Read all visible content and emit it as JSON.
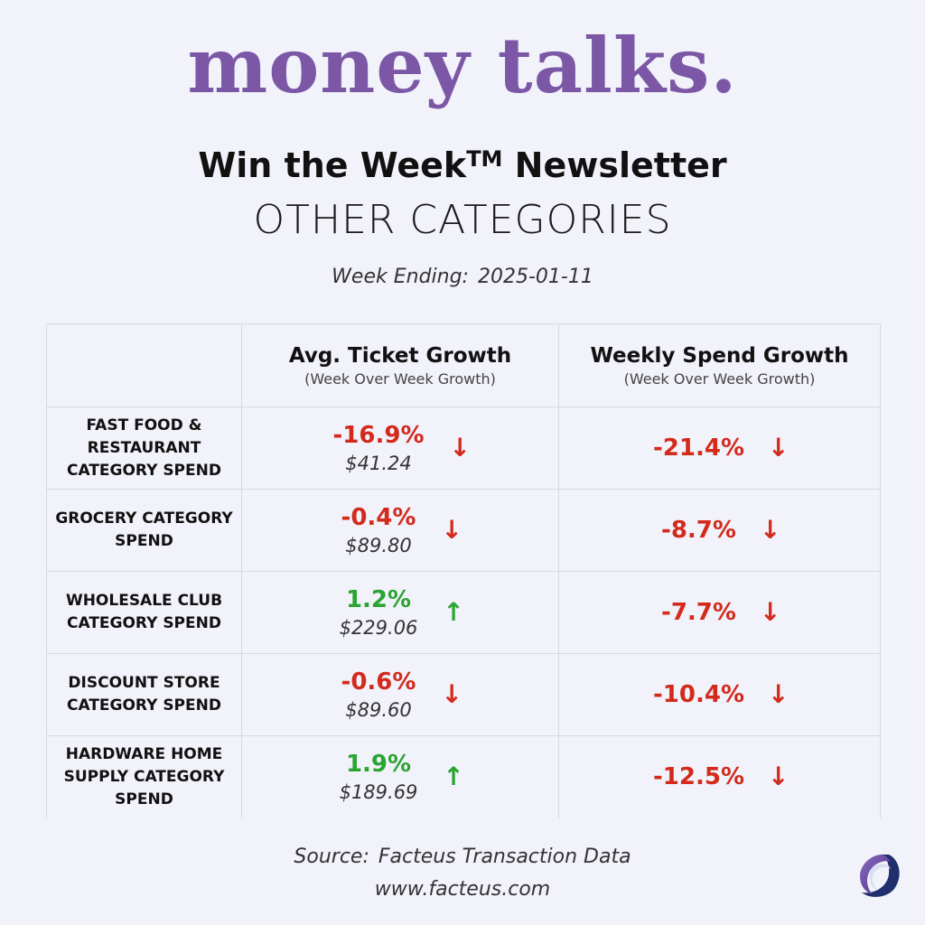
{
  "header": {
    "brand": "money talks.",
    "newsletter": "Win the Week",
    "trademark": "TM",
    "newsletter_suffix": " Newsletter",
    "section": "OTHER CATEGORIES",
    "week_label": "Week Ending:",
    "week_date": "2025-01-11"
  },
  "table": {
    "columns": [
      {
        "title": "Avg. Ticket Growth",
        "subtitle": "(Week Over Week Growth)"
      },
      {
        "title": "Weekly Spend Growth",
        "subtitle": "(Week Over Week Growth)"
      }
    ],
    "rows": [
      {
        "category": "FAST FOOD & RESTAURANT CATEGORY SPEND",
        "ticket_growth": "-16.9%",
        "ticket_amount": "$41.24",
        "ticket_dir": "down",
        "spend_growth": "-21.4%",
        "spend_dir": "down"
      },
      {
        "category": "GROCERY CATEGORY SPEND",
        "ticket_growth": "-0.4%",
        "ticket_amount": "$89.80",
        "ticket_dir": "down",
        "spend_growth": "-8.7%",
        "spend_dir": "down"
      },
      {
        "category": "WHOLESALE CLUB CATEGORY SPEND",
        "ticket_growth": "1.2%",
        "ticket_amount": "$229.06",
        "ticket_dir": "up",
        "spend_growth": "-7.7%",
        "spend_dir": "down"
      },
      {
        "category": "DISCOUNT STORE CATEGORY SPEND",
        "ticket_growth": "-0.6%",
        "ticket_amount": "$89.60",
        "ticket_dir": "down",
        "spend_growth": "-10.4%",
        "spend_dir": "down"
      },
      {
        "category": "HARDWARE HOME SUPPLY CATEGORY SPEND",
        "ticket_growth": "1.9%",
        "ticket_amount": "$189.69",
        "ticket_dir": "up",
        "spend_growth": "-12.5%",
        "spend_dir": "down"
      }
    ]
  },
  "colors": {
    "brand": "#7b57a6",
    "negative": "#d32a1c",
    "positive_amount": "#d32a1c",
    "positive_up": "#2aa531"
  },
  "footer": {
    "source_label": "Source:",
    "source_value": "Facteus Transaction Data",
    "url": "www.facteus.com",
    "logo_icon": "facteus-logo-icon"
  }
}
